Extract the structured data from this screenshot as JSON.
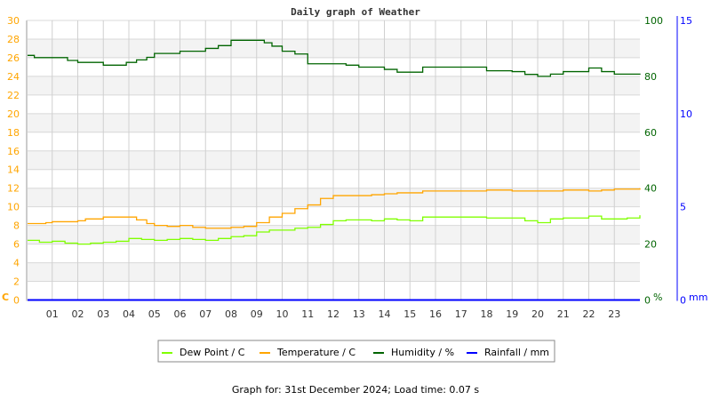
{
  "chart_data": {
    "type": "line",
    "title": "Daily graph of Weather",
    "x_ticks": [
      "01",
      "02",
      "03",
      "04",
      "05",
      "06",
      "07",
      "08",
      "09",
      "10",
      "11",
      "12",
      "13",
      "14",
      "15",
      "16",
      "17",
      "18",
      "19",
      "20",
      "21",
      "22",
      "23"
    ],
    "xlim": [
      0,
      24
    ],
    "left_axis": {
      "unit": "C",
      "ylim": [
        0,
        30
      ],
      "ticks": [
        "0",
        "2",
        "4",
        "6",
        "8",
        "10",
        "12",
        "14",
        "16",
        "18",
        "20",
        "22",
        "24",
        "26",
        "28",
        "30"
      ],
      "color": "#ffa500"
    },
    "right_axis": {
      "unit": "%",
      "ylim": [
        0,
        100
      ],
      "ticks": [
        "0",
        "20",
        "40",
        "60",
        "80",
        "100"
      ],
      "color": "#006400"
    },
    "rain_axis": {
      "unit": "mm",
      "ylim": [
        0,
        15
      ],
      "ticks": [
        "0",
        "5",
        "10",
        "15"
      ],
      "color": "#0000ff"
    },
    "grid": true,
    "legend_placement": "bottom",
    "series": [
      {
        "name": "Dew Point / C",
        "color": "#80ff00",
        "axis": "left",
        "x": [
          0,
          0.5,
          1,
          1.5,
          2,
          2.5,
          3,
          3.5,
          4,
          4.5,
          5,
          5.5,
          6,
          6.5,
          7,
          7.5,
          8,
          8.5,
          9,
          9.5,
          10,
          10.5,
          11,
          11.5,
          12,
          12.5,
          13,
          13.5,
          14,
          14.5,
          15,
          15.5,
          16,
          17,
          18,
          19,
          19.5,
          20,
          20.5,
          21,
          22,
          22.5,
          23,
          23.5,
          24
        ],
        "y": [
          6.4,
          6.2,
          6.3,
          6.1,
          6.0,
          6.1,
          6.2,
          6.3,
          6.6,
          6.5,
          6.4,
          6.5,
          6.6,
          6.5,
          6.4,
          6.6,
          6.8,
          6.9,
          7.3,
          7.5,
          7.5,
          7.7,
          7.8,
          8.1,
          8.5,
          8.6,
          8.6,
          8.5,
          8.7,
          8.6,
          8.5,
          8.9,
          8.9,
          8.9,
          8.8,
          8.8,
          8.5,
          8.3,
          8.7,
          8.8,
          9.0,
          8.7,
          8.7,
          8.8,
          9.1
        ]
      },
      {
        "name": "Temperature / C",
        "color": "#ffa500",
        "axis": "left",
        "x": [
          0,
          0.75,
          1,
          2,
          2.3,
          3,
          4,
          4.3,
          4.7,
          5,
          5.5,
          6,
          6.5,
          7,
          7.5,
          8,
          8.5,
          9,
          9.5,
          10,
          10.5,
          11,
          11.5,
          12,
          12.5,
          13,
          13.5,
          14,
          14.5,
          15,
          15.5,
          16,
          17,
          18,
          19,
          20,
          21,
          22,
          22.5,
          23,
          24
        ],
        "y": [
          8.2,
          8.3,
          8.4,
          8.5,
          8.7,
          8.9,
          8.9,
          8.6,
          8.2,
          8.0,
          7.9,
          8.0,
          7.8,
          7.7,
          7.7,
          7.8,
          7.9,
          8.3,
          8.9,
          9.3,
          9.8,
          10.2,
          10.9,
          11.2,
          11.2,
          11.2,
          11.3,
          11.4,
          11.5,
          11.5,
          11.7,
          11.7,
          11.7,
          11.8,
          11.7,
          11.7,
          11.8,
          11.7,
          11.8,
          11.9,
          12.0
        ]
      },
      {
        "name": "Humidity / %",
        "color": "#006400",
        "axis": "right",
        "x": [
          0,
          0.3,
          1.3,
          1.6,
          2,
          3,
          3.5,
          3.9,
          4.3,
          4.7,
          5,
          5.5,
          6,
          6.5,
          7,
          7.5,
          8,
          9,
          9.3,
          9.6,
          10,
          10.5,
          11,
          12,
          12.5,
          13,
          14,
          14.5,
          15,
          15.5,
          18,
          19,
          19.5,
          20,
          20.5,
          21,
          22,
          22.5,
          23,
          24
        ],
        "y": [
          87.5,
          86.7,
          86.7,
          85.7,
          85,
          84,
          84,
          85,
          85.9,
          86.8,
          88.2,
          88.2,
          89,
          89,
          90,
          91,
          92.9,
          92.9,
          92,
          90.8,
          89,
          88,
          84.5,
          84.5,
          84,
          83.3,
          82.5,
          81.5,
          81.5,
          83.3,
          82,
          81.7,
          80.7,
          80,
          80.8,
          81.7,
          83,
          81.7,
          80.8,
          81
        ]
      },
      {
        "name": "Rainfall / mm",
        "color": "#0000ff",
        "axis": "rain",
        "x": [
          0,
          24
        ],
        "y": [
          0,
          0
        ]
      }
    ]
  },
  "footer": "Graph for: 31st December 2024; Load time: 0.07 s"
}
